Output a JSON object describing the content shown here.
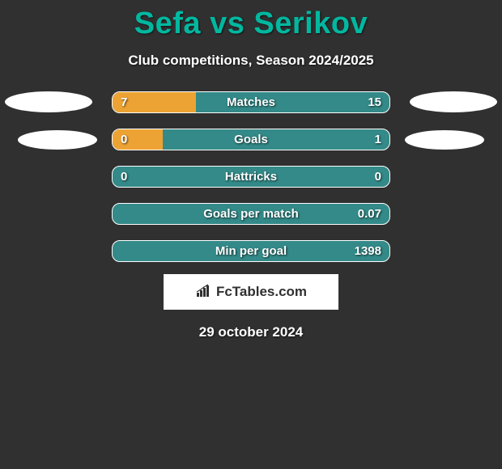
{
  "title": "Sefa vs Serikov",
  "subtitle": "Club competitions, Season 2024/2025",
  "date": "29 october 2024",
  "logo_text": "FcTables.com",
  "colors": {
    "background": "#303030",
    "title": "#00b8a0",
    "fill_left": "#eda333",
    "fill_right": "#338a88",
    "text": "#ffffff",
    "border": "#ffffff"
  },
  "rows": [
    {
      "label": "Matches",
      "left": "7",
      "right": "15",
      "left_pct": 30,
      "right_pct": 70
    },
    {
      "label": "Goals",
      "left": "0",
      "right": "1",
      "left_pct": 18,
      "right_pct": 82
    },
    {
      "label": "Hattricks",
      "left": "0",
      "right": "0",
      "left_pct": 0,
      "right_pct": 100
    },
    {
      "label": "Goals per match",
      "left": "",
      "right": "0.07",
      "left_pct": 0,
      "right_pct": 100
    },
    {
      "label": "Min per goal",
      "left": "",
      "right": "1398",
      "left_pct": 0,
      "right_pct": 100
    }
  ]
}
